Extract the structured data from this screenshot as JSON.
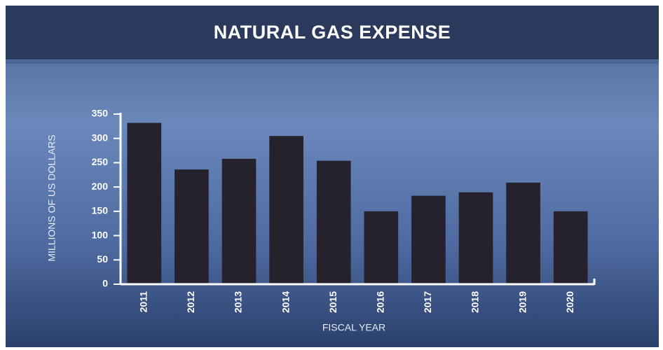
{
  "chart_data": {
    "type": "bar",
    "title": "NATURAL GAS EXPENSE",
    "x_label": "FISCAL YEAR",
    "y_label": "MILLIONS OF US DOLLARS",
    "categories": [
      "2011",
      "2012",
      "2013",
      "2014",
      "2015",
      "2016",
      "2017",
      "2018",
      "2019",
      "2020"
    ],
    "values": [
      332,
      236,
      258,
      305,
      254,
      150,
      182,
      189,
      209,
      150
    ],
    "color": "#25222e",
    "ylim": [
      0,
      350
    ],
    "yticks": [
      0,
      50,
      100,
      150,
      200,
      250,
      300,
      350
    ],
    "grid": false
  }
}
